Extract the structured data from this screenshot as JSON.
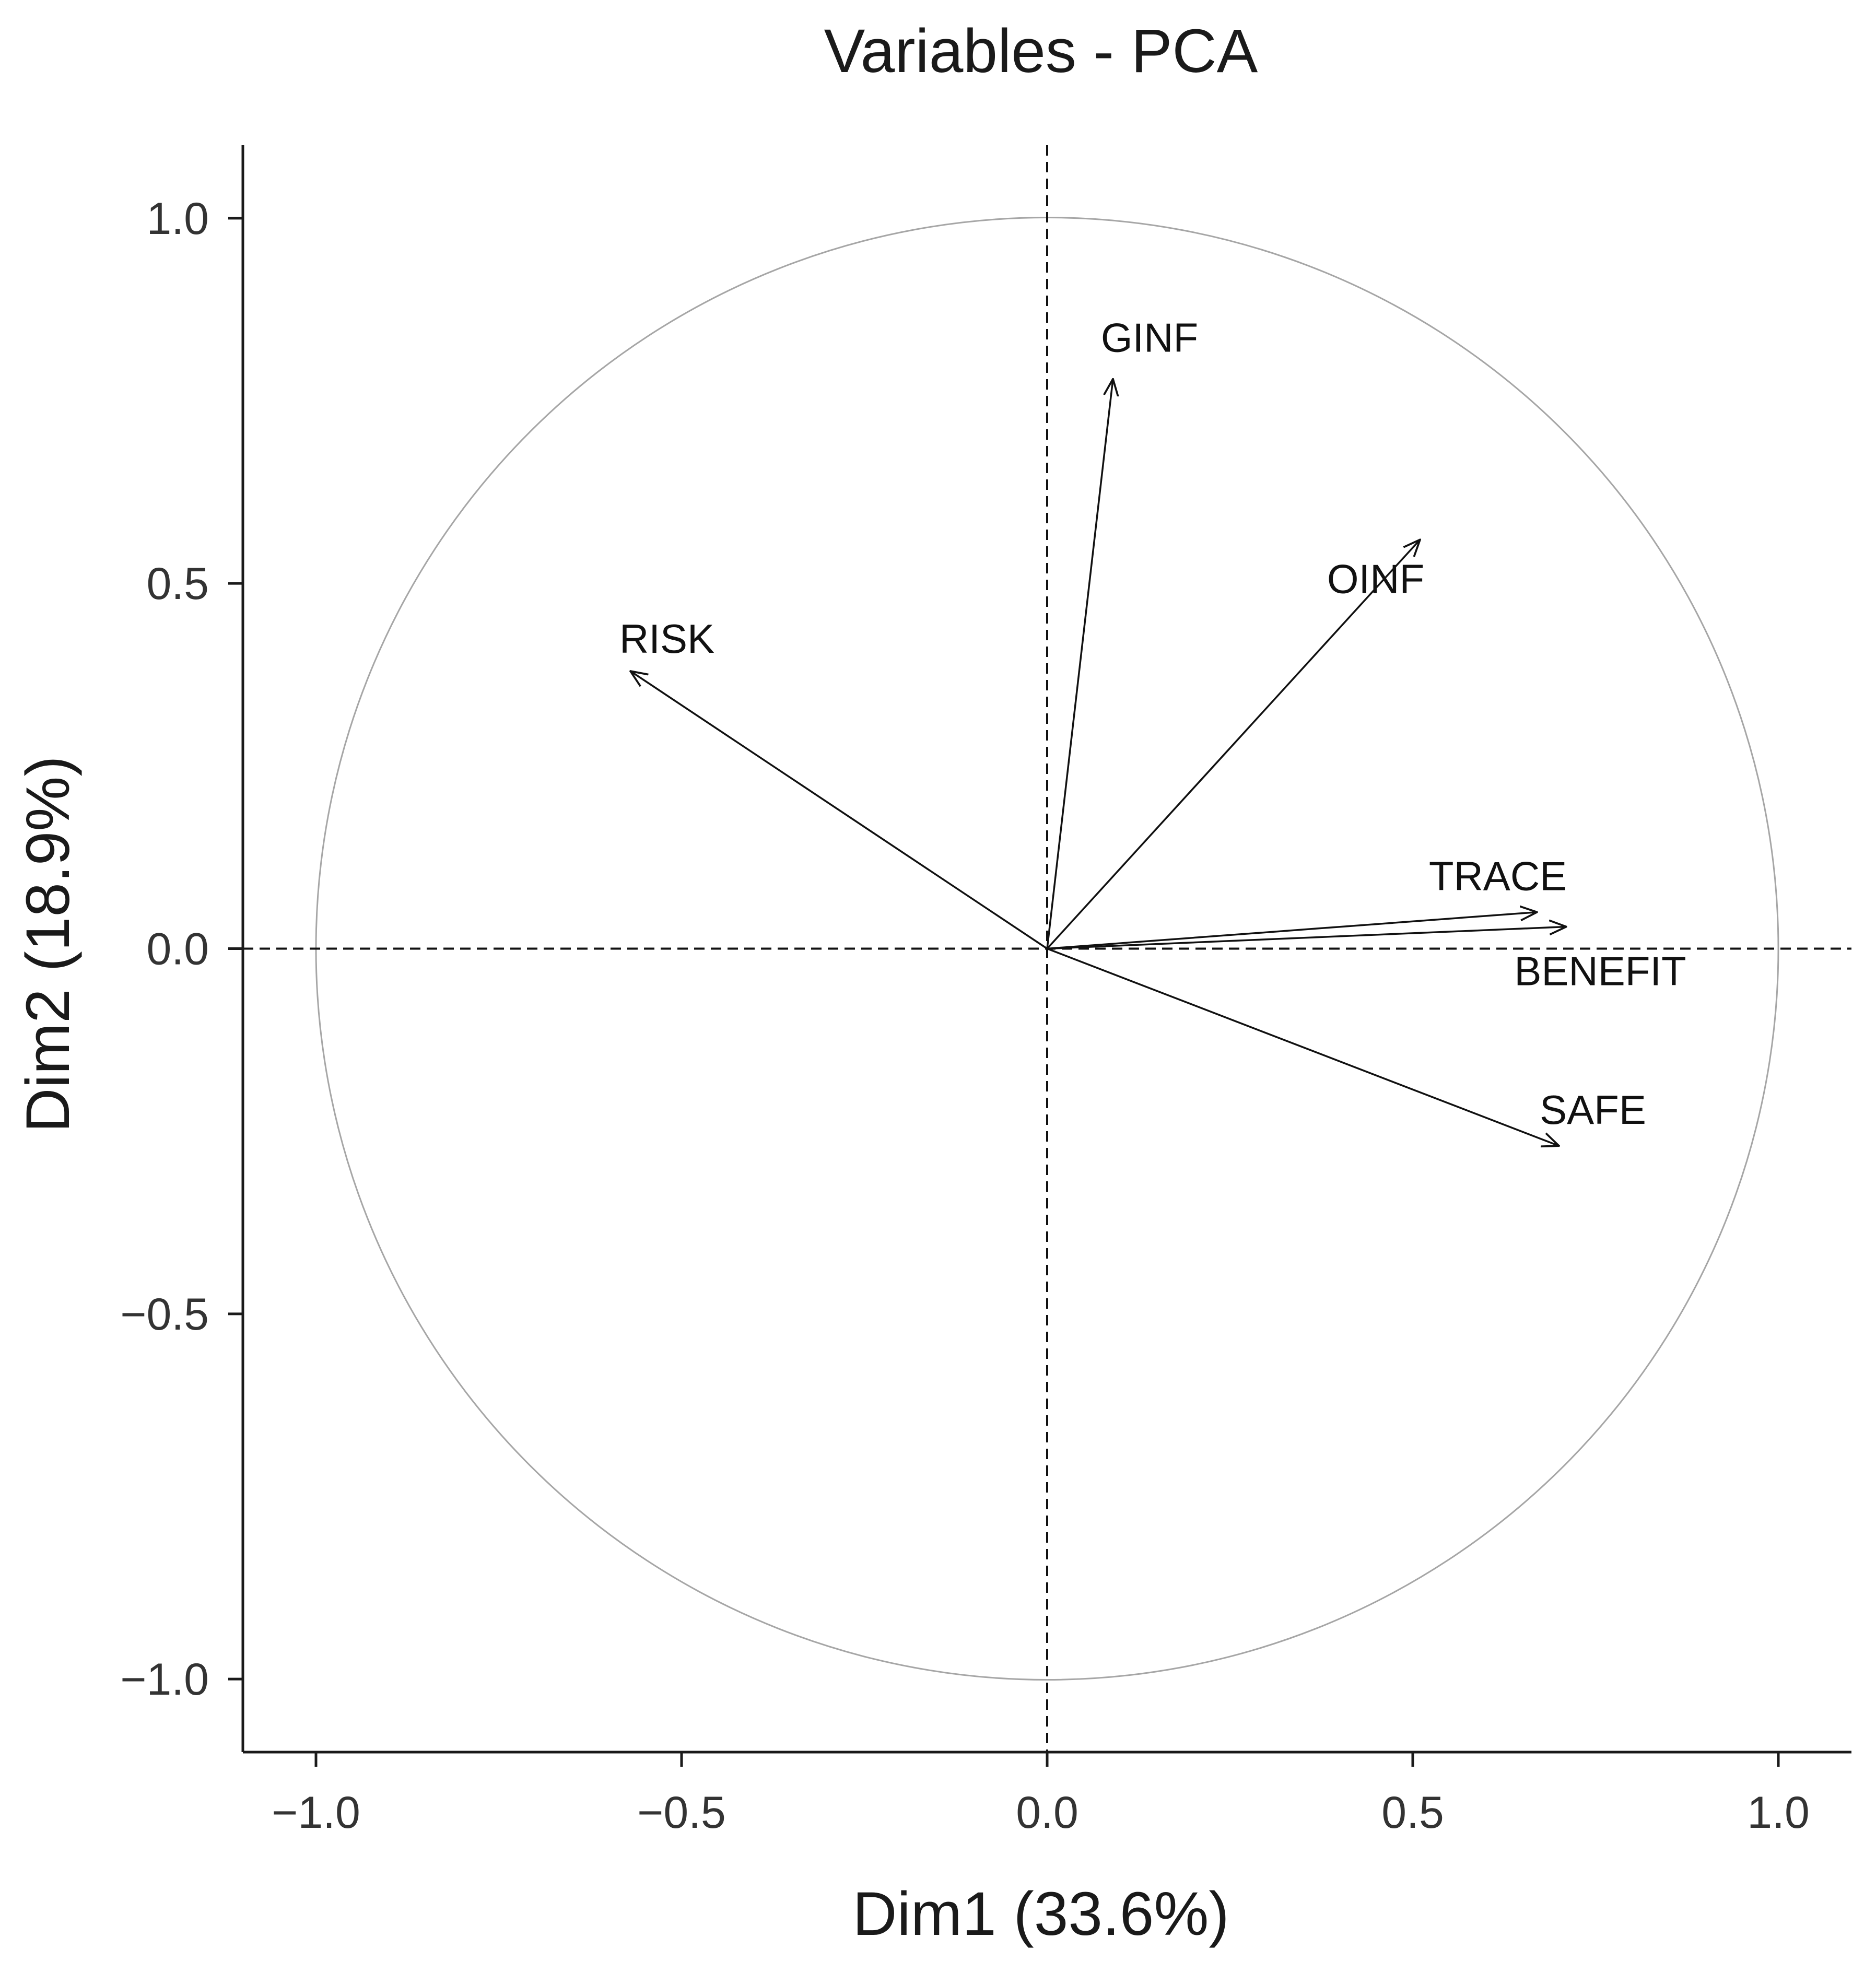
{
  "chart_data": {
    "type": "scatter",
    "subtype": "pca-correlation-circle",
    "title": "Variables - PCA",
    "xlabel": "Dim1 (33.6%)",
    "ylabel": "Dim2 (18.9%)",
    "xlim": [
      -1.1,
      1.1
    ],
    "ylim": [
      -1.1,
      1.1
    ],
    "xticks": [
      -1.0,
      -0.5,
      0.0,
      0.5,
      1.0
    ],
    "yticks": [
      -1.0,
      -0.5,
      0.0,
      0.5,
      1.0
    ],
    "xtick_labels": [
      "−1.0",
      "−0.5",
      "0.0",
      "0.5",
      "1.0"
    ],
    "ytick_labels": [
      "−1.0",
      "−0.5",
      "0.0",
      "0.5",
      "1.0"
    ],
    "grid": false,
    "unit_circle": true,
    "reference_lines": {
      "x": 0,
      "y": 0,
      "style": "dashed"
    },
    "variables": [
      {
        "name": "GINF",
        "x": 0.09,
        "y": 0.78
      },
      {
        "name": "OINF",
        "x": 0.51,
        "y": 0.56
      },
      {
        "name": "RISK",
        "x": -0.57,
        "y": 0.38
      },
      {
        "name": "TRACE",
        "x": 0.67,
        "y": 0.05
      },
      {
        "name": "BENEFIT",
        "x": 0.71,
        "y": 0.03
      },
      {
        "name": "SAFE",
        "x": 0.7,
        "y": -0.27
      }
    ],
    "colors": {
      "arrow": "#111111",
      "circle": "#a6a6a6",
      "axis": "#1a1a1a",
      "refline": "#111111"
    }
  }
}
